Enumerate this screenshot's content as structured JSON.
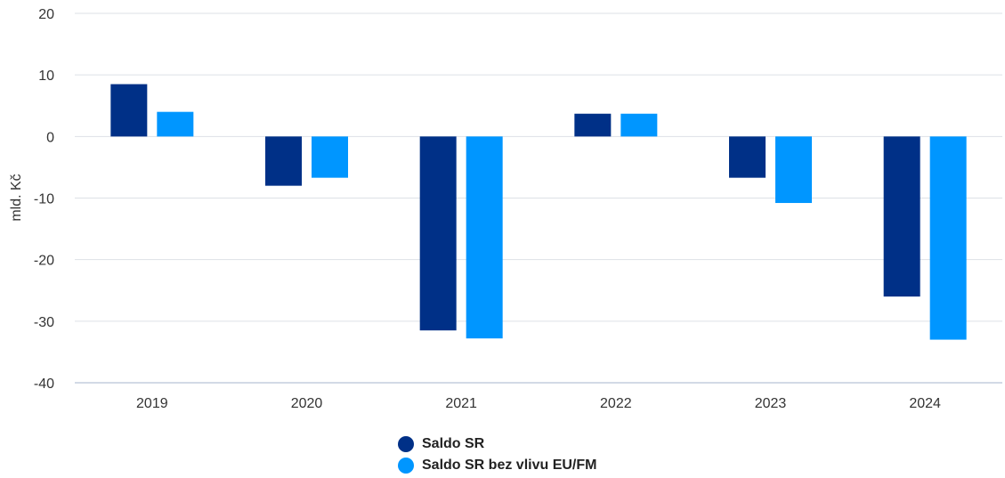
{
  "chart_data": {
    "type": "bar",
    "ylabel": "mld. Kč",
    "xlabel": "",
    "title": "",
    "ylim": [
      -40,
      20
    ],
    "yticks": [
      20,
      10,
      0,
      -10,
      -20,
      -30,
      -40
    ],
    "categories": [
      "2019",
      "2020",
      "2021",
      "2022",
      "2023",
      "2024"
    ],
    "series": [
      {
        "name": "Saldo SR",
        "color": "#003087",
        "values": [
          8.5,
          -8,
          -31.5,
          3.7,
          -6.7,
          -26
        ]
      },
      {
        "name": "Saldo SR bez vlivu EU/FM",
        "color": "#0096ff",
        "values": [
          4,
          -6.7,
          -32.8,
          3.7,
          -10.8,
          -33
        ]
      }
    ],
    "grid": true,
    "legend_position": "bottom-center"
  }
}
